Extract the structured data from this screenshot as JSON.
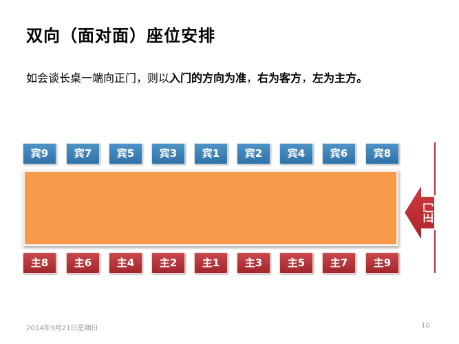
{
  "slide": {
    "title": "双向（面对面）座位安排",
    "subtitle": {
      "part1": "如会谈长桌一端向正门，则以",
      "part2": "入门的方向为准",
      "part3": "，",
      "part4": "右为客方",
      "part5": "，",
      "part6": "左为主方。"
    },
    "guests": [
      "宾9",
      "宾7",
      "宾5",
      "宾3",
      "宾1",
      "宾2",
      "宾4",
      "宾6",
      "宾8"
    ],
    "hosts": [
      "主8",
      "主6",
      "主4",
      "主2",
      "主1",
      "主3",
      "主5",
      "主7",
      "主9"
    ],
    "door_label": "正门",
    "footer": {
      "date": "2014年9月21日星期日",
      "page": "10"
    },
    "colors": {
      "guest": "#3b80b8",
      "host": "#b3353a",
      "table": "#f79a49",
      "door": "#c62c31"
    }
  }
}
